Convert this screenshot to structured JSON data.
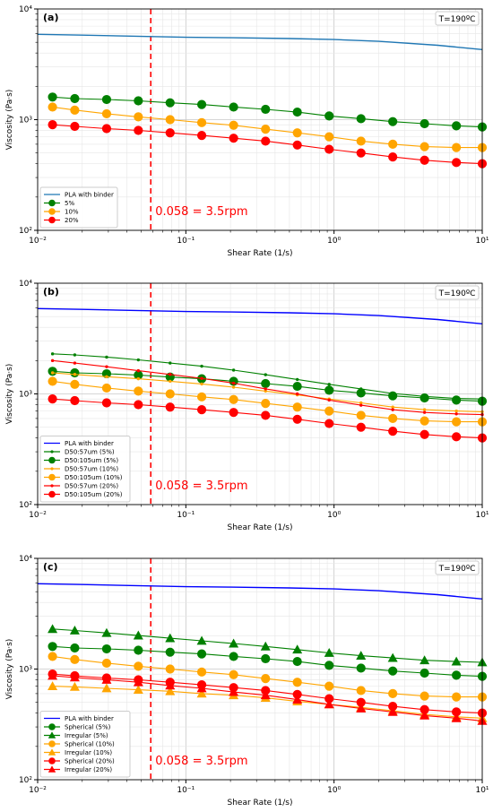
{
  "colors": {
    "binder_a": "#1f77b4",
    "binder": "#0000ff",
    "green": "#008000",
    "orange": "#ffa500",
    "red": "#ff0000"
  },
  "chart_data": [
    {
      "type": "line",
      "panel_label": "(a)",
      "annotation": "T=190ºC",
      "xlabel": "Shear Rate (1/s)",
      "ylabel": "Viscosity (Pa·s)",
      "xscale": "log",
      "yscale": "log",
      "xlim": [
        0.01,
        10
      ],
      "ylim": [
        100,
        10000
      ],
      "x_ticks": [
        "10⁻²",
        "10⁻¹",
        "10⁰",
        "10¹"
      ],
      "y_ticks": [
        "10²",
        "10³",
        "10⁴"
      ],
      "grid": true,
      "legend_position": "lower-left",
      "reference_line": {
        "x": 0.058,
        "label": "0.058 = 3.5rpm"
      },
      "series": [
        {
          "name": "PLA with binder",
          "color_key": "binder_a",
          "marker": "none",
          "x": [
            0.01,
            0.02,
            0.05,
            0.1,
            0.2,
            0.5,
            1,
            2,
            5,
            10
          ],
          "y": [
            5900,
            5800,
            5650,
            5550,
            5500,
            5400,
            5300,
            5100,
            4700,
            4300
          ]
        },
        {
          "name": "5%",
          "color_key": "green",
          "marker": "circle",
          "x": [
            0.0126,
            0.0178,
            0.0292,
            0.0478,
            0.0783,
            0.128,
            0.21,
            0.345,
            0.565,
            0.927,
            1.52,
            2.49,
            4.08,
            6.69,
            10
          ],
          "y": [
            1600,
            1550,
            1520,
            1480,
            1420,
            1370,
            1300,
            1240,
            1170,
            1080,
            1020,
            960,
            920,
            880,
            860
          ]
        },
        {
          "name": "10%",
          "color_key": "orange",
          "marker": "circle",
          "x": [
            0.0126,
            0.0178,
            0.0292,
            0.0478,
            0.0783,
            0.128,
            0.21,
            0.345,
            0.565,
            0.927,
            1.52,
            2.49,
            4.08,
            6.69,
            10
          ],
          "y": [
            1300,
            1220,
            1130,
            1060,
            1000,
            940,
            890,
            820,
            760,
            700,
            640,
            600,
            570,
            560,
            560
          ]
        },
        {
          "name": "20%",
          "color_key": "red",
          "marker": "circle",
          "x": [
            0.0126,
            0.0178,
            0.0292,
            0.0478,
            0.0783,
            0.128,
            0.21,
            0.345,
            0.565,
            0.927,
            1.52,
            2.49,
            4.08,
            6.69,
            10
          ],
          "y": [
            900,
            870,
            830,
            800,
            760,
            720,
            680,
            640,
            590,
            540,
            500,
            460,
            430,
            410,
            400
          ]
        }
      ]
    },
    {
      "type": "line",
      "panel_label": "(b)",
      "annotation": "T=190ºC",
      "xlabel": "Shear Rate (1/s)",
      "ylabel": "Viscosity (Pa·s)",
      "xscale": "log",
      "yscale": "log",
      "xlim": [
        0.01,
        10
      ],
      "ylim": [
        100,
        10000
      ],
      "x_ticks": [
        "10⁻²",
        "10⁻¹",
        "10⁰",
        "10¹"
      ],
      "y_ticks": [
        "10²",
        "10³",
        "10⁴"
      ],
      "grid": true,
      "legend_position": "lower-left",
      "reference_line": {
        "x": 0.058,
        "label": "0.058 = 3.5rpm"
      },
      "series": [
        {
          "name": "PLA with binder",
          "color_key": "binder",
          "marker": "none",
          "x": [
            0.01,
            0.02,
            0.05,
            0.1,
            0.2,
            0.5,
            1,
            2,
            5,
            10
          ],
          "y": [
            5900,
            5800,
            5650,
            5550,
            5500,
            5400,
            5300,
            5100,
            4700,
            4300
          ]
        },
        {
          "name": "D50:57um (5%)",
          "color_key": "green",
          "marker": "smalldot",
          "x": [
            0.0126,
            0.0178,
            0.0292,
            0.0478,
            0.0783,
            0.128,
            0.21,
            0.345,
            0.565,
            0.927,
            1.52,
            2.49,
            4.08,
            6.69,
            10
          ],
          "y": [
            2300,
            2250,
            2150,
            2030,
            1900,
            1780,
            1640,
            1490,
            1350,
            1220,
            1110,
            1010,
            950,
            910,
            900
          ]
        },
        {
          "name": "D50:105um (5%)",
          "color_key": "green",
          "marker": "circle",
          "x": [
            0.0126,
            0.0178,
            0.0292,
            0.0478,
            0.0783,
            0.128,
            0.21,
            0.345,
            0.565,
            0.927,
            1.52,
            2.49,
            4.08,
            6.69,
            10
          ],
          "y": [
            1600,
            1550,
            1520,
            1480,
            1420,
            1370,
            1300,
            1240,
            1170,
            1080,
            1020,
            960,
            920,
            880,
            860
          ]
        },
        {
          "name": "D50:57um (10%)",
          "color_key": "orange",
          "marker": "smalldot",
          "x": [
            0.0126,
            0.0178,
            0.0292,
            0.0478,
            0.0783,
            0.128,
            0.21,
            0.345,
            0.565,
            0.927,
            1.52,
            2.49,
            4.08,
            6.69,
            10
          ],
          "y": [
            1550,
            1500,
            1430,
            1370,
            1300,
            1230,
            1150,
            1060,
            980,
            900,
            830,
            760,
            720,
            700,
            690
          ]
        },
        {
          "name": "D50:105um (10%)",
          "color_key": "orange",
          "marker": "circle",
          "x": [
            0.0126,
            0.0178,
            0.0292,
            0.0478,
            0.0783,
            0.128,
            0.21,
            0.345,
            0.565,
            0.927,
            1.52,
            2.49,
            4.08,
            6.69,
            10
          ],
          "y": [
            1300,
            1220,
            1130,
            1060,
            1000,
            940,
            890,
            820,
            760,
            700,
            640,
            600,
            570,
            560,
            560
          ]
        },
        {
          "name": "D50:57um (20%)",
          "color_key": "red",
          "marker": "smalldot",
          "x": [
            0.0126,
            0.0178,
            0.0292,
            0.0478,
            0.0783,
            0.128,
            0.21,
            0.345,
            0.565,
            0.927,
            1.52,
            2.49,
            4.08,
            6.69,
            10
          ],
          "y": [
            2000,
            1900,
            1760,
            1620,
            1500,
            1380,
            1250,
            1110,
            1000,
            880,
            790,
            720,
            680,
            660,
            650
          ]
        },
        {
          "name": "D50:105um (20%)",
          "color_key": "red",
          "marker": "circle",
          "x": [
            0.0126,
            0.0178,
            0.0292,
            0.0478,
            0.0783,
            0.128,
            0.21,
            0.345,
            0.565,
            0.927,
            1.52,
            2.49,
            4.08,
            6.69,
            10
          ],
          "y": [
            900,
            870,
            830,
            800,
            760,
            720,
            680,
            640,
            590,
            540,
            500,
            460,
            430,
            410,
            400
          ]
        }
      ]
    },
    {
      "type": "line",
      "panel_label": "(c)",
      "annotation": "T=190ºC",
      "xlabel": "Shear Rate (1/s)",
      "ylabel": "Viscosity (Pa·s)",
      "xscale": "log",
      "yscale": "log",
      "xlim": [
        0.01,
        10
      ],
      "ylim": [
        100,
        10000
      ],
      "x_ticks": [
        "10⁻²",
        "10⁻¹",
        "10⁰",
        "10¹"
      ],
      "y_ticks": [
        "10²",
        "10³",
        "10⁴"
      ],
      "grid": true,
      "legend_position": "lower-left",
      "reference_line": {
        "x": 0.058,
        "label": "0.058 = 3.5rpm"
      },
      "series": [
        {
          "name": "PLA with binder",
          "color_key": "binder",
          "marker": "none",
          "x": [
            0.01,
            0.02,
            0.05,
            0.1,
            0.2,
            0.5,
            1,
            2,
            5,
            10
          ],
          "y": [
            5900,
            5800,
            5650,
            5550,
            5500,
            5400,
            5300,
            5100,
            4700,
            4300
          ]
        },
        {
          "name": "Spherical (5%)",
          "color_key": "green",
          "marker": "circle",
          "x": [
            0.0126,
            0.0178,
            0.0292,
            0.0478,
            0.0783,
            0.128,
            0.21,
            0.345,
            0.565,
            0.927,
            1.52,
            2.49,
            4.08,
            6.69,
            10
          ],
          "y": [
            1600,
            1550,
            1520,
            1480,
            1420,
            1370,
            1300,
            1240,
            1170,
            1080,
            1020,
            960,
            920,
            880,
            860
          ]
        },
        {
          "name": "Irregular (5%)",
          "color_key": "green",
          "marker": "triangle",
          "x": [
            0.0126,
            0.0178,
            0.0292,
            0.0478,
            0.0783,
            0.128,
            0.21,
            0.345,
            0.565,
            0.927,
            1.52,
            2.49,
            4.08,
            6.69,
            10
          ],
          "y": [
            2300,
            2230,
            2120,
            2010,
            1900,
            1800,
            1700,
            1600,
            1500,
            1400,
            1320,
            1260,
            1200,
            1170,
            1150
          ]
        },
        {
          "name": "Spherical (10%)",
          "color_key": "orange",
          "marker": "circle",
          "x": [
            0.0126,
            0.0178,
            0.0292,
            0.0478,
            0.0783,
            0.128,
            0.21,
            0.345,
            0.565,
            0.927,
            1.52,
            2.49,
            4.08,
            6.69,
            10
          ],
          "y": [
            1300,
            1220,
            1130,
            1060,
            1000,
            940,
            890,
            820,
            760,
            700,
            640,
            600,
            570,
            560,
            560
          ]
        },
        {
          "name": "Irregular (10%)",
          "color_key": "orange",
          "marker": "triangle",
          "x": [
            0.0126,
            0.0178,
            0.0292,
            0.0478,
            0.0783,
            0.128,
            0.21,
            0.345,
            0.565,
            0.927,
            1.52,
            2.49,
            4.08,
            6.69,
            10
          ],
          "y": [
            700,
            690,
            670,
            650,
            630,
            600,
            580,
            550,
            510,
            480,
            450,
            420,
            390,
            370,
            360
          ]
        },
        {
          "name": "Spherical (20%)",
          "color_key": "red",
          "marker": "circle",
          "x": [
            0.0126,
            0.0178,
            0.0292,
            0.0478,
            0.0783,
            0.128,
            0.21,
            0.345,
            0.565,
            0.927,
            1.52,
            2.49,
            4.08,
            6.69,
            10
          ],
          "y": [
            900,
            870,
            830,
            800,
            760,
            720,
            680,
            640,
            590,
            540,
            500,
            460,
            430,
            410,
            400
          ]
        },
        {
          "name": "Irregular (20%)",
          "color_key": "red",
          "marker": "triangle",
          "x": [
            0.0126,
            0.0178,
            0.0292,
            0.0478,
            0.0783,
            0.128,
            0.21,
            0.345,
            0.565,
            0.927,
            1.52,
            2.49,
            4.08,
            6.69,
            10
          ],
          "y": [
            870,
            840,
            800,
            760,
            710,
            670,
            620,
            580,
            530,
            480,
            440,
            410,
            380,
            360,
            340
          ]
        }
      ]
    }
  ]
}
